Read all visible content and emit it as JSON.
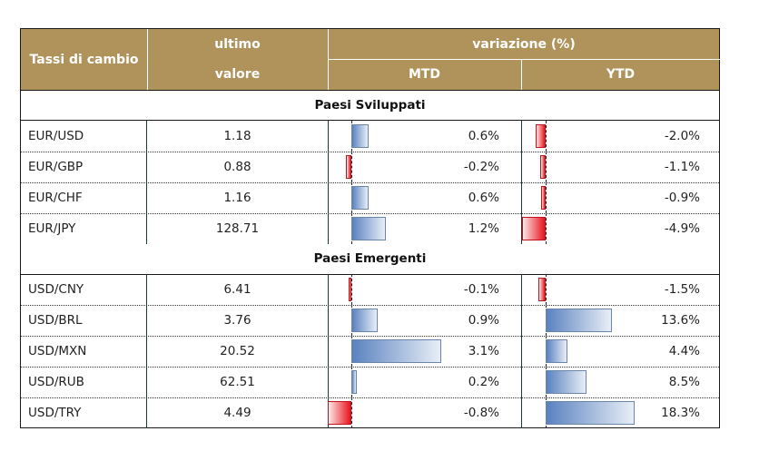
{
  "header": {
    "col1": "Tassi di cambio",
    "col2_line1": "ultimo",
    "col2_line2": "valore",
    "variation": "variazione (%)",
    "mtd": "MTD",
    "ytd": "YTD"
  },
  "sections": [
    {
      "title": "Paesi Sviluppati",
      "rows": [
        {
          "pair": "EUR/USD",
          "value": "1.18",
          "mtd": 0.6,
          "mtd_label": "0.6%",
          "ytd": -2.0,
          "ytd_label": "-2.0%"
        },
        {
          "pair": "EUR/GBP",
          "value": "0.88",
          "mtd": -0.2,
          "mtd_label": "-0.2%",
          "ytd": -1.1,
          "ytd_label": "-1.1%"
        },
        {
          "pair": "EUR/CHF",
          "value": "1.16",
          "mtd": 0.6,
          "mtd_label": "0.6%",
          "ytd": -0.9,
          "ytd_label": "-0.9%"
        },
        {
          "pair": "EUR/JPY",
          "value": "128.71",
          "mtd": 1.2,
          "mtd_label": "1.2%",
          "ytd": -4.9,
          "ytd_label": "-4.9%"
        }
      ]
    },
    {
      "title": "Paesi Emergenti",
      "rows": [
        {
          "pair": "USD/CNY",
          "value": "6.41",
          "mtd": -0.1,
          "mtd_label": "-0.1%",
          "ytd": -1.5,
          "ytd_label": "-1.5%"
        },
        {
          "pair": "USD/BRL",
          "value": "3.76",
          "mtd": 0.9,
          "mtd_label": "0.9%",
          "ytd": 13.6,
          "ytd_label": "13.6%"
        },
        {
          "pair": "USD/MXN",
          "value": "20.52",
          "mtd": 3.1,
          "mtd_label": "3.1%",
          "ytd": 4.4,
          "ytd_label": "4.4%"
        },
        {
          "pair": "USD/RUB",
          "value": "62.51",
          "mtd": 0.2,
          "mtd_label": "0.2%",
          "ytd": 8.5,
          "ytd_label": "8.5%"
        },
        {
          "pair": "USD/TRY",
          "value": "4.49",
          "mtd": -0.8,
          "mtd_label": "-0.8%",
          "ytd": 18.3,
          "ytd_label": "18.3%"
        }
      ]
    }
  ],
  "colors": {
    "header": "#b0935a",
    "positive": "#5a82c0",
    "negative": "#e8141c"
  }
}
